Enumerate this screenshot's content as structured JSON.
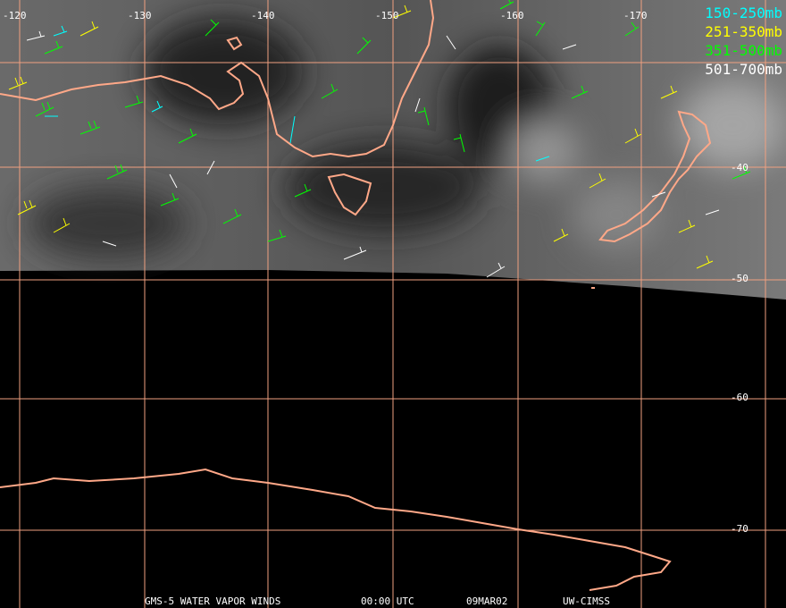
{
  "map": {
    "lon_labels": [
      "-120",
      "-130",
      "-140",
      "-150",
      "-160",
      "-170"
    ],
    "lat_labels": [
      "-40",
      "-50",
      "-60",
      "-70"
    ],
    "legend": [
      {
        "label": "150-250mb",
        "color": "#00ffff"
      },
      {
        "label": "251-350mb",
        "color": "#ffff00"
      },
      {
        "label": "351-500mb",
        "color": "#00ff00"
      },
      {
        "label": "501-700mb",
        "color": "#ffffff"
      }
    ],
    "footer": [
      "GMS-5 WATER VAPOR WINDS",
      "00:00 UTC",
      "09MAR02",
      "UW-CIMSS"
    ]
  }
}
